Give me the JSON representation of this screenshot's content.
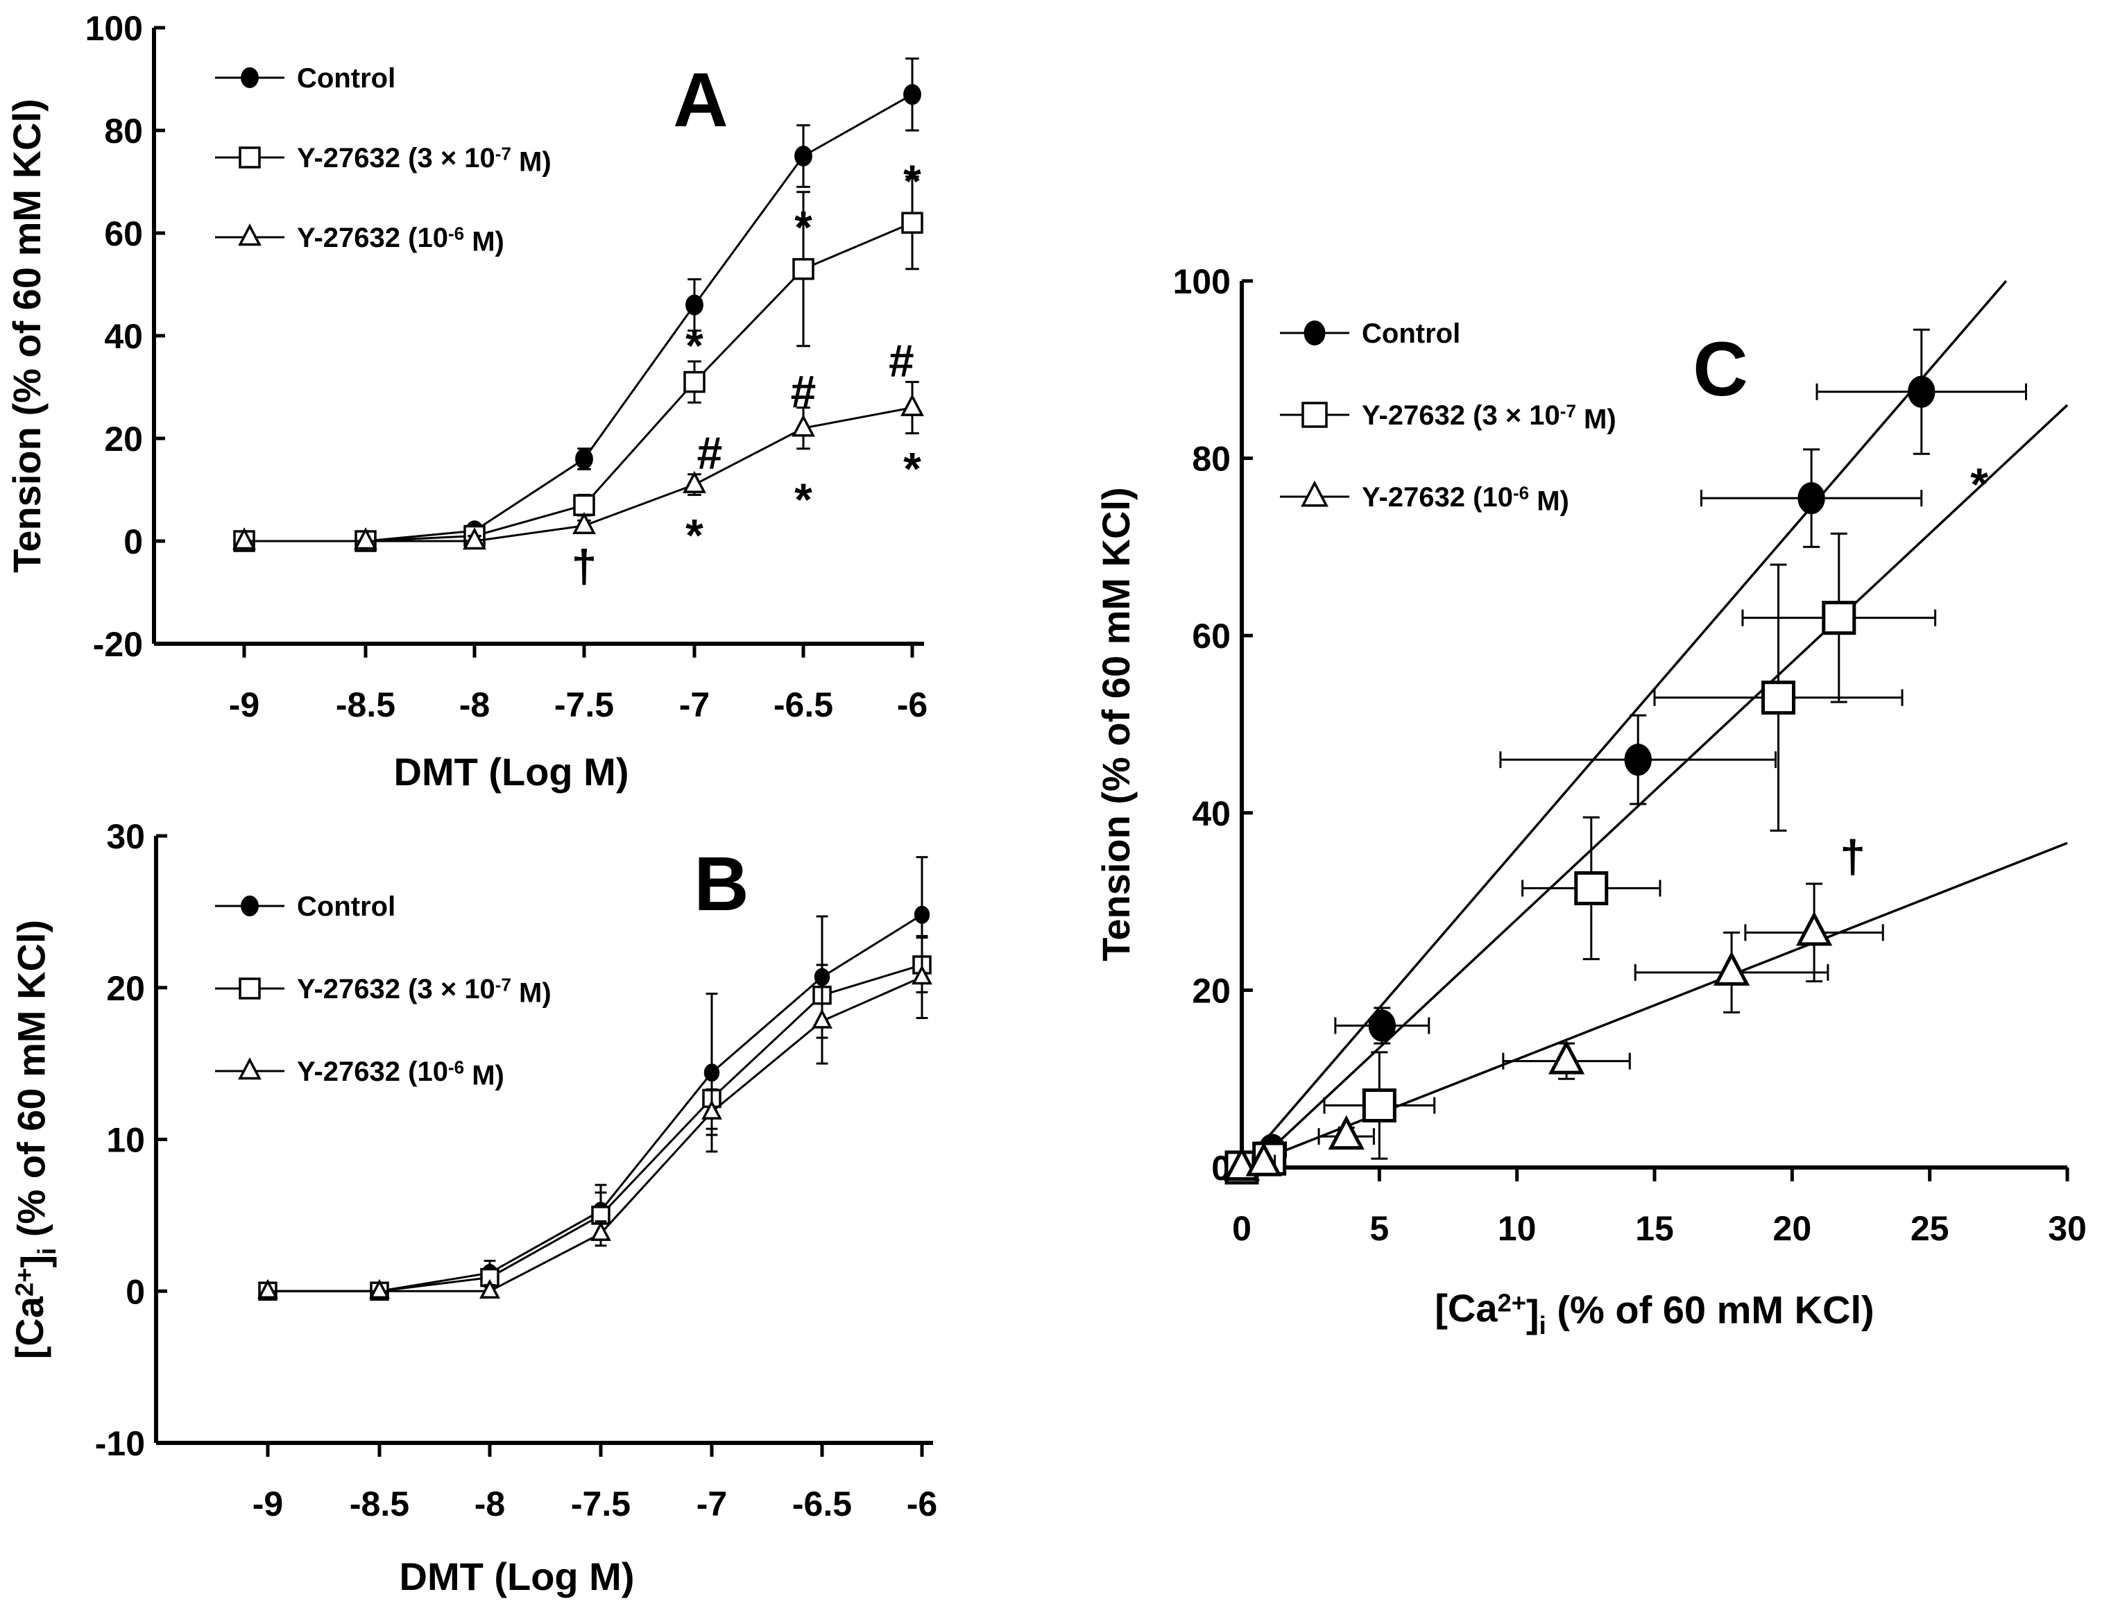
{
  "chart_data": [
    {
      "id": "A",
      "type": "line",
      "panel_label": "A",
      "xlabel": "DMT (Log M)",
      "ylabel": "Tension (% of 60 mM KCl)",
      "xlim": [
        -9.45,
        -5.95
      ],
      "ylim": [
        -20,
        100
      ],
      "xticks": [
        -9,
        -8.5,
        -8,
        -7.5,
        -7,
        -6.5,
        -6
      ],
      "yticks": [
        -20,
        0,
        20,
        40,
        60,
        80,
        100
      ],
      "x": [
        -9,
        -8.5,
        -8,
        -7.5,
        -7,
        -6.5,
        -6
      ],
      "legend_position": "top-left",
      "series": [
        {
          "name": "Control",
          "marker": "filled-circle",
          "values": [
            0,
            0,
            2,
            16,
            46,
            75,
            87
          ],
          "err": [
            0,
            0,
            1,
            2,
            5,
            6,
            7
          ]
        },
        {
          "name": "Y-27632 (3 × 10⁻⁷ M)",
          "marker": "open-square",
          "values": [
            0,
            0,
            1,
            7,
            31,
            53,
            62
          ],
          "err": [
            0,
            0,
            1,
            2,
            4,
            15,
            9
          ]
        },
        {
          "name": "Y-27632 (10⁻⁶ M)",
          "marker": "open-triangle",
          "values": [
            0,
            0,
            0,
            3,
            11,
            22,
            26
          ],
          "err": [
            0,
            0,
            1,
            1,
            2,
            4,
            5
          ]
        }
      ],
      "annotations": [
        {
          "text": "†",
          "x": -7.5,
          "y": -5
        },
        {
          "text": "*",
          "x": -7,
          "y": 38
        },
        {
          "text": "#",
          "x": -6.93,
          "y": 17
        },
        {
          "text": "*",
          "x": -7,
          "y": 1
        },
        {
          "text": "*",
          "x": -6.5,
          "y": 61
        },
        {
          "text": "#",
          "x": -6.5,
          "y": 29
        },
        {
          "text": "*",
          "x": -6.5,
          "y": 8
        },
        {
          "text": "*",
          "x": -6,
          "y": 70
        },
        {
          "text": "#",
          "x": -6.05,
          "y": 35
        },
        {
          "text": "*",
          "x": -6,
          "y": 14
        }
      ]
    },
    {
      "id": "B",
      "type": "line",
      "panel_label": "B",
      "xlabel": "DMT (Log M)",
      "ylabel": "[Ca²⁺]ᵢ (% of 60 mM KCl)",
      "xlim": [
        -9.5,
        -5.95
      ],
      "ylim": [
        -10,
        30
      ],
      "xticks": [
        -9,
        -8.5,
        -8,
        -7.5,
        -7,
        -6.5,
        -6
      ],
      "yticks": [
        -10,
        0,
        10,
        20,
        30
      ],
      "x": [
        -9,
        -8.5,
        -8,
        -7.5,
        -7,
        -6.5,
        -6
      ],
      "legend_position": "top-left",
      "series": [
        {
          "name": "Control",
          "marker": "filled-circle",
          "values": [
            0,
            0,
            1.2,
            5.3,
            14.4,
            20.7,
            24.8
          ],
          "err": [
            0,
            0,
            0.8,
            1.7,
            5.2,
            4.0,
            3.8
          ]
        },
        {
          "name": "Y-27632 (3 × 10⁻⁷ M)",
          "marker": "open-square",
          "values": [
            0,
            0,
            0.9,
            5.0,
            12.7,
            19.5,
            21.5
          ],
          "err": [
            0,
            0,
            0.6,
            1.5,
            2.0,
            2.0,
            1.8
          ]
        },
        {
          "name": "Y-27632 (10⁻⁶ M)",
          "marker": "open-triangle",
          "values": [
            0,
            0,
            0,
            3.8,
            11.8,
            17.8,
            20.7
          ],
          "err": [
            0,
            0,
            0.4,
            0.8,
            1.5,
            2.8,
            2.7
          ]
        }
      ]
    },
    {
      "id": "C",
      "type": "scatter",
      "panel_label": "C",
      "xlabel": "[Ca²⁺]ᵢ (% of 60 mM KCl)",
      "ylabel": "Tension (% of 60 mM KCl)",
      "xlim": [
        0,
        30
      ],
      "ylim": [
        0,
        100
      ],
      "xticks": [
        0,
        5,
        10,
        15,
        20,
        25,
        30
      ],
      "yticks": [
        0,
        20,
        40,
        60,
        80,
        100
      ],
      "legend_position": "top-left",
      "series": [
        {
          "name": "Control",
          "marker": "filled-circle",
          "points": [
            {
              "x": 0,
              "y": 0,
              "xerr": 0,
              "yerr": 0
            },
            {
              "x": 1.1,
              "y": 2,
              "xerr": 0.5,
              "yerr": 1
            },
            {
              "x": 5.1,
              "y": 16,
              "xerr": 1.7,
              "yerr": 2
            },
            {
              "x": 14.4,
              "y": 46,
              "xerr": 5,
              "yerr": 5
            },
            {
              "x": 20.7,
              "y": 75.5,
              "xerr": 4,
              "yerr": 5.5
            },
            {
              "x": 24.7,
              "y": 87.5,
              "xerr": 3.8,
              "yerr": 7
            }
          ],
          "fit": {
            "slope": 3.6,
            "intercept": 0
          }
        },
        {
          "name": "Y-27632 (3 × 10⁻⁷ M)",
          "marker": "open-square",
          "points": [
            {
              "x": 0,
              "y": 0,
              "xerr": 0,
              "yerr": 0
            },
            {
              "x": 1,
              "y": 1,
              "xerr": 0.5,
              "yerr": 1
            },
            {
              "x": 5,
              "y": 7,
              "xerr": 2,
              "yerr": 6
            },
            {
              "x": 12.7,
              "y": 31.5,
              "xerr": 2.5,
              "yerr": 8
            },
            {
              "x": 19.5,
              "y": 53,
              "xerr": 4.5,
              "yerr": 15
            },
            {
              "x": 21.7,
              "y": 62,
              "xerr": 3.5,
              "yerr": 9.5
            }
          ],
          "fit": {
            "slope": 2.9,
            "intercept": -1
          }
        },
        {
          "name": "Y-27632 (10⁻⁶ M)",
          "marker": "open-triangle",
          "points": [
            {
              "x": 0,
              "y": 0,
              "xerr": 0,
              "yerr": 0
            },
            {
              "x": 0.8,
              "y": 0.5,
              "xerr": 0.4,
              "yerr": 0.5
            },
            {
              "x": 3.8,
              "y": 3.5,
              "xerr": 1,
              "yerr": 1
            },
            {
              "x": 11.8,
              "y": 12,
              "xerr": 2.3,
              "yerr": 2
            },
            {
              "x": 17.8,
              "y": 22,
              "xerr": 3.5,
              "yerr": 4.5
            },
            {
              "x": 20.8,
              "y": 26.5,
              "xerr": 2.5,
              "yerr": 5.5
            }
          ],
          "fit": {
            "slope": 1.22,
            "intercept": 0
          }
        }
      ],
      "annotations": [
        {
          "text": "*",
          "x": 26.8,
          "y": 77
        },
        {
          "text": "†",
          "x": 22.2,
          "y": 35
        }
      ]
    }
  ]
}
